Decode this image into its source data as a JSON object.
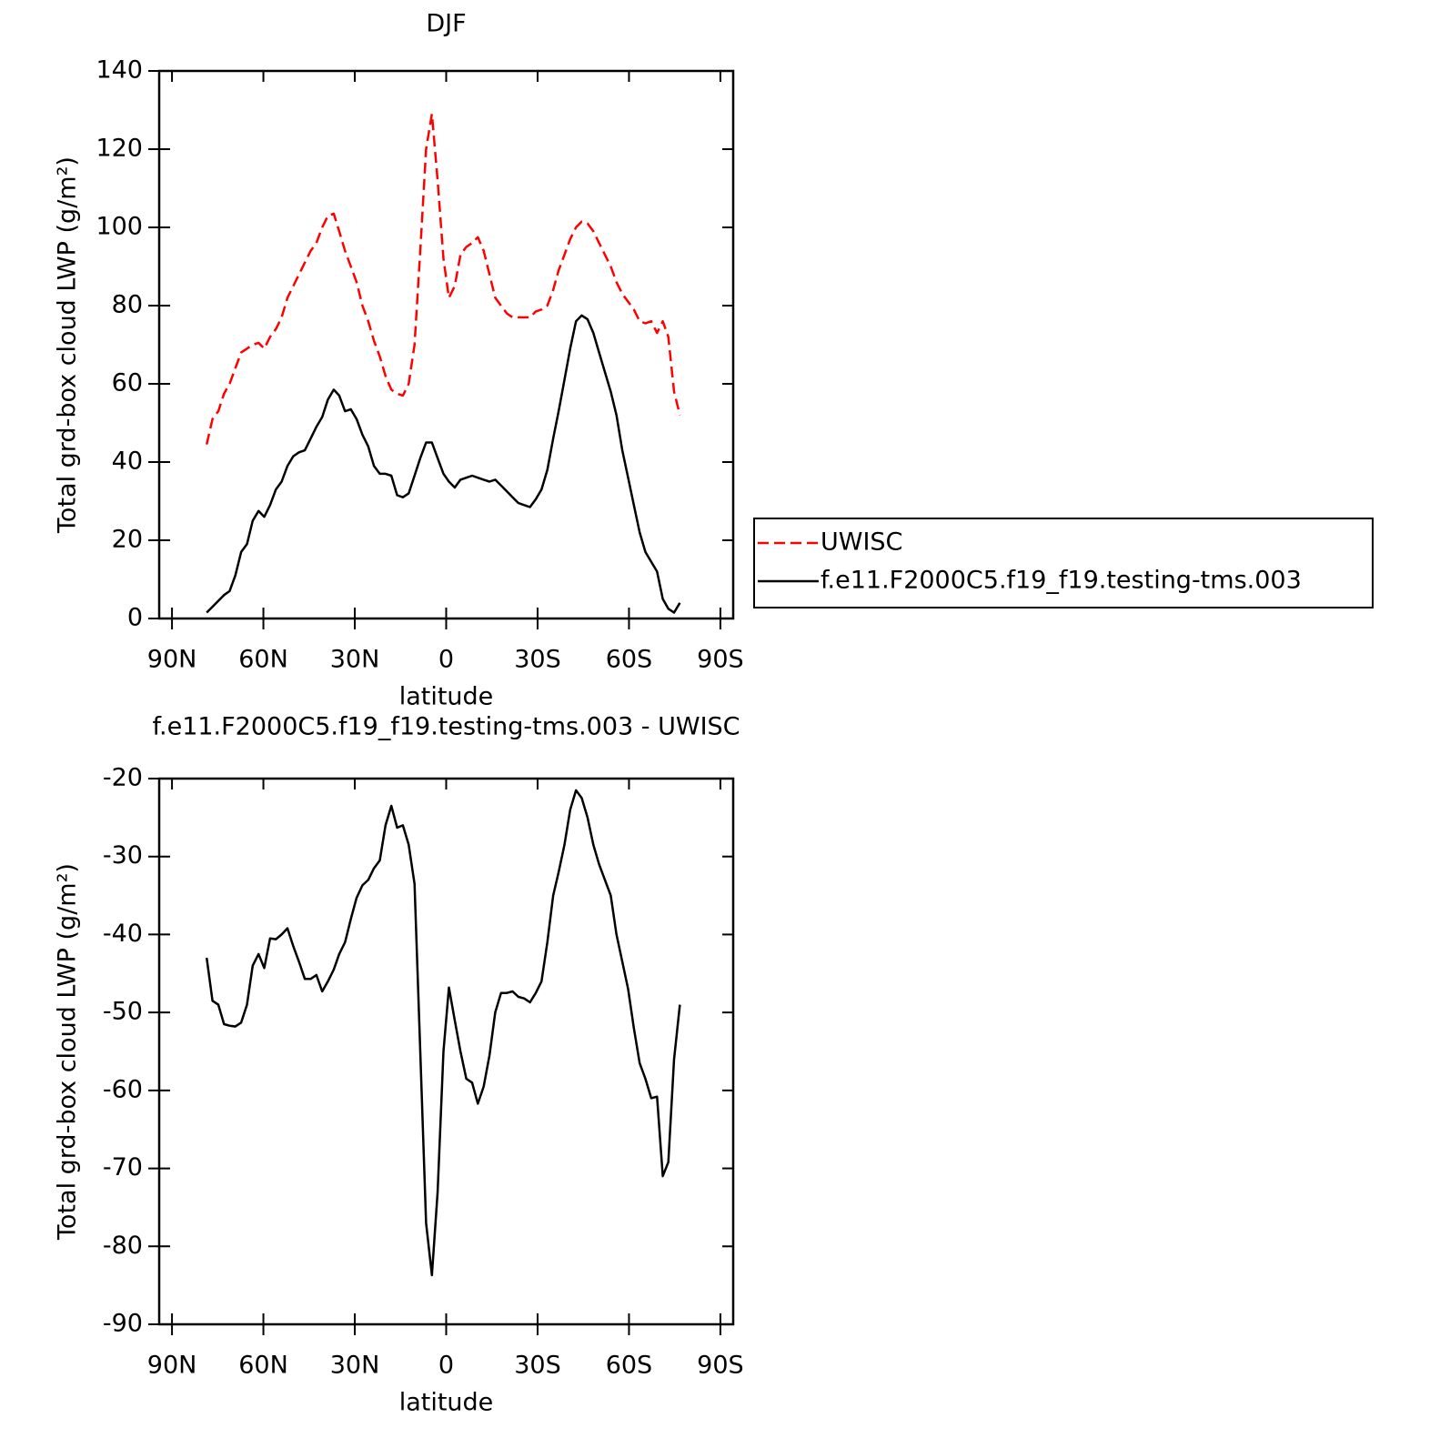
{
  "chart_data": [
    {
      "type": "line",
      "title": "DJF",
      "xlabel": "latitude",
      "ylabel": "Total grd-box cloud LWP (g/m²)",
      "x": [
        78.6,
        76.7,
        74.8,
        72.9,
        71.1,
        69.2,
        67.3,
        65.4,
        63.5,
        61.6,
        59.7,
        57.8,
        55.9,
        54.0,
        52.1,
        50.2,
        48.3,
        46.4,
        44.5,
        42.6,
        40.7,
        38.8,
        36.9,
        35.1,
        33.2,
        31.3,
        29.4,
        27.5,
        25.6,
        23.7,
        21.8,
        19.9,
        18.0,
        16.1,
        14.2,
        12.3,
        10.4,
        8.5,
        6.6,
        4.7,
        2.8,
        0.9,
        -0.9,
        -2.8,
        -4.7,
        -6.6,
        -8.5,
        -10.4,
        -12.3,
        -14.2,
        -16.1,
        -18.0,
        -19.9,
        -21.8,
        -23.7,
        -25.6,
        -27.5,
        -29.4,
        -31.3,
        -33.2,
        -35.1,
        -36.9,
        -38.8,
        -40.7,
        -42.6,
        -44.5,
        -46.4,
        -48.3,
        -50.2,
        -52.1,
        -54.0,
        -55.9,
        -57.8,
        -59.7,
        -61.6,
        -63.5,
        -65.4,
        -67.3,
        -69.2,
        -71.1,
        -72.9,
        -74.8,
        -76.7
      ],
      "series": [
        {
          "name": "UWISC",
          "color": "#ff0000",
          "style": "dashed",
          "values": [
            44.5,
            51,
            53,
            57.5,
            60,
            64,
            68,
            69,
            70,
            70.5,
            69,
            72,
            74,
            77,
            82,
            85,
            88,
            91,
            94,
            96,
            100,
            103,
            103.5,
            99,
            94,
            90,
            86,
            80,
            76,
            71,
            67,
            62,
            58.5,
            57.5,
            57,
            60,
            70,
            94,
            120,
            129,
            112,
            92,
            82,
            85,
            93,
            95,
            96,
            97.5,
            94,
            88,
            82,
            80,
            78,
            77,
            77,
            77,
            77,
            78.5,
            79,
            80,
            84,
            89,
            93,
            97,
            100,
            101.5,
            101,
            99,
            96,
            93,
            90,
            86,
            83,
            81,
            79,
            76,
            75.5,
            76,
            73,
            76,
            72,
            58,
            52
          ]
        },
        {
          "name": "f.e11.F2000C5.f19_f19.testing-tms.003",
          "color": "#000000",
          "style": "solid",
          "values": [
            1.5,
            3,
            4.5,
            6,
            7,
            11,
            17,
            19,
            25,
            27.5,
            26,
            29,
            33,
            35,
            39,
            41.5,
            42.5,
            43,
            46,
            49,
            51.5,
            56,
            58.5,
            57,
            53,
            53.5,
            51,
            47,
            44,
            39,
            37,
            37,
            36.5,
            31.5,
            31,
            32,
            36.5,
            41,
            45,
            45,
            41,
            37,
            35,
            33.5,
            35.5,
            36,
            36.5,
            36,
            35.5,
            35,
            35.5,
            34,
            32.5,
            31,
            29.5,
            29,
            28.5,
            30.5,
            33,
            38,
            46,
            53,
            61,
            69,
            76,
            77.5,
            76.5,
            73,
            68,
            63,
            58,
            52,
            43,
            36,
            29,
            22,
            17,
            14.5,
            12,
            5,
            2.5,
            1.5,
            4
          ]
        }
      ],
      "xlim": [
        94.2,
        -94.2
      ],
      "xticks": [
        {
          "value": 90,
          "label": "90N"
        },
        {
          "value": 60,
          "label": "60N"
        },
        {
          "value": 30,
          "label": "30N"
        },
        0,
        {
          "value": -30,
          "label": "30S"
        },
        {
          "value": -60,
          "label": "60S"
        },
        {
          "value": -90,
          "label": "90S"
        }
      ],
      "ylim": [
        0,
        140
      ],
      "yticks": [
        0,
        20,
        40,
        60,
        80,
        100,
        120,
        140
      ],
      "legend": "outside-right"
    },
    {
      "type": "line",
      "title": "f.e11.F2000C5.f19_f19.testing-tms.003 - UWISC",
      "xlabel": "latitude",
      "ylabel": "Total grd-box cloud LWP (g/m²)",
      "x": [
        78.6,
        76.7,
        74.8,
        72.9,
        71.1,
        69.2,
        67.3,
        65.4,
        63.5,
        61.6,
        59.7,
        57.8,
        55.9,
        54.0,
        52.1,
        50.2,
        48.3,
        46.4,
        44.5,
        42.6,
        40.7,
        38.8,
        36.9,
        35.1,
        33.2,
        31.3,
        29.4,
        27.5,
        25.6,
        23.7,
        21.8,
        19.9,
        18.0,
        16.1,
        14.2,
        12.3,
        10.4,
        8.5,
        6.6,
        4.7,
        2.8,
        0.9,
        -0.9,
        -2.8,
        -4.7,
        -6.6,
        -8.5,
        -10.4,
        -12.3,
        -14.2,
        -16.1,
        -18.0,
        -19.9,
        -21.8,
        -23.7,
        -25.6,
        -27.5,
        -29.4,
        -31.3,
        -33.2,
        -35.1,
        -36.9,
        -38.8,
        -40.7,
        -42.6,
        -44.5,
        -46.4,
        -48.3,
        -50.2,
        -52.1,
        -54.0,
        -55.9,
        -57.8,
        -59.7,
        -61.6,
        -63.5,
        -65.4,
        -67.3,
        -69.2,
        -71.1,
        -72.9,
        -74.8,
        -76.7
      ],
      "values": [
        -43,
        -48.5,
        -49,
        -51.5,
        -51.7,
        -51.8,
        -51.3,
        -49,
        -44,
        -42.5,
        -44.3,
        -40.5,
        -40.6,
        -40,
        -39.2,
        -41.5,
        -43.5,
        -45.7,
        -45.7,
        -45.2,
        -47.3,
        -46,
        -44.5,
        -42.5,
        -41,
        -38,
        -35.3,
        -33.7,
        -33,
        -31.5,
        -30.5,
        -26,
        -23.5,
        -26.3,
        -26,
        -28.5,
        -33.5,
        -55,
        -77,
        -83.7,
        -73,
        -55,
        -46.8,
        -51,
        -55,
        -58.5,
        -59,
        -61.7,
        -59.5,
        -55.5,
        -50,
        -47.5,
        -47.5,
        -47.3,
        -48,
        -48.2,
        -48.7,
        -47.5,
        -46,
        -41,
        -35,
        -32,
        -28.5,
        -24,
        -21.5,
        -22.5,
        -25,
        -28.5,
        -31,
        -33,
        -35,
        -40,
        -43.5,
        -47,
        -52,
        -56.5,
        -58.5,
        -61,
        -60.8,
        -71,
        -69.2,
        -56,
        -49
      ],
      "color": "#000000",
      "xlim": [
        94.2,
        -94.2
      ],
      "xticks": [
        {
          "value": 90,
          "label": "90N"
        },
        {
          "value": 60,
          "label": "60N"
        },
        {
          "value": 30,
          "label": "30N"
        },
        0,
        {
          "value": -30,
          "label": "30S"
        },
        {
          "value": -60,
          "label": "60S"
        },
        {
          "value": -90,
          "label": "90S"
        }
      ],
      "ylim": [
        -90,
        -20
      ],
      "yticks": [
        -90,
        -80,
        -70,
        -60,
        -50,
        -40,
        -30,
        -20
      ]
    }
  ]
}
